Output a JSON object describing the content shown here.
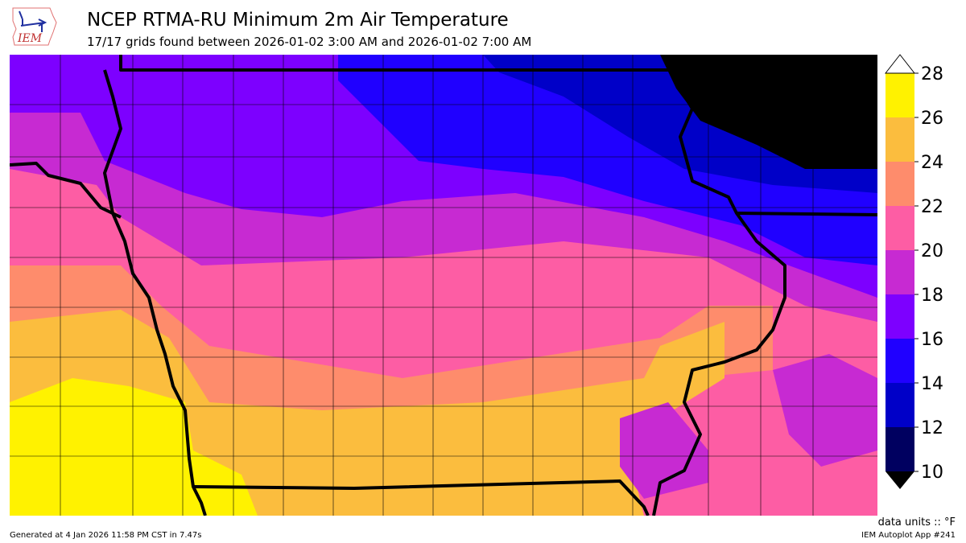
{
  "header": {
    "title": "NCEP RTMA-RU Minimum 2m Air Temperature",
    "subtitle": "17/17 grids found between 2026-01-02 3:00 AM and 2026-01-02 7:00 AM",
    "logo_text": "IEM"
  },
  "colorbar": {
    "levels": [
      10,
      12,
      14,
      16,
      18,
      20,
      22,
      24,
      26,
      28
    ],
    "tick_labels": [
      "10",
      "12",
      "14",
      "16",
      "18",
      "20",
      "22",
      "24",
      "26",
      "28"
    ],
    "colors": [
      "#000060",
      "#0000c8",
      "#2000ff",
      "#7d00ff",
      "#c72ad2",
      "#fd5da4",
      "#fe8c6c",
      "#fbbd3e",
      "#fff200"
    ],
    "under_color": "#000000",
    "over_color": "#ffffff",
    "extend": "both"
  },
  "map": {
    "field": "minimum 2m air temperature",
    "region": "Iowa and surrounding states"
  },
  "footer": {
    "units": "data units :: °F",
    "generated": "Generated at 4 Jan 2026 11:58 PM CST in 7.47s",
    "app": "IEM Autoplot App #241"
  }
}
